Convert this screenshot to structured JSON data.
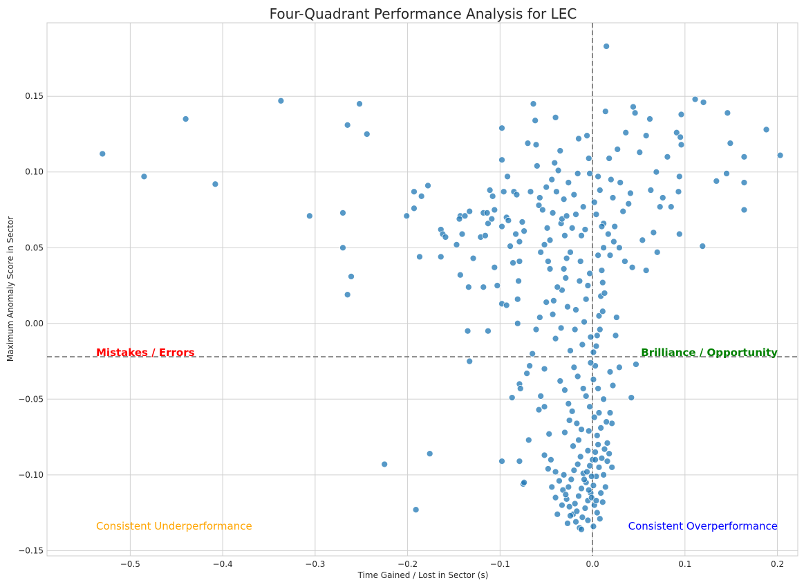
{
  "colors": {
    "point_fill": "#1f77b4",
    "point_stroke": "#ffffff",
    "grid": "#d0d0d0",
    "frame": "#cccccc",
    "threshold_line": "#808080",
    "mistakes": "#ff0000",
    "brilliance": "#008000",
    "underperformance": "#ffa500",
    "overperformance": "#0000ff"
  },
  "annotations": {
    "mistakes": "Mistakes / Errors",
    "brilliance": "Brilliance / Opportunity",
    "underperformance": "Consistent Underperformance",
    "overperformance": "Consistent Overperformance"
  },
  "chart_data": {
    "type": "scatter",
    "title": "Four-Quadrant Performance Analysis for LEC",
    "xlabel": "Time Gained / Lost in Sector (s)",
    "ylabel": "Maximum Anomaly Score in Sector",
    "xlim": [
      -0.59,
      0.222
    ],
    "ylim": [
      -0.1535,
      0.1985
    ],
    "xticks": [
      -0.5,
      -0.4,
      -0.3,
      -0.2,
      -0.1,
      0.0,
      0.1,
      0.2
    ],
    "yticks": [
      -0.15,
      -0.1,
      -0.05,
      0.0,
      0.05,
      0.1,
      0.15
    ],
    "xtick_labels": [
      "−0.5",
      "−0.4",
      "−0.3",
      "−0.2",
      "−0.1",
      "0.0",
      "0.1",
      "0.2"
    ],
    "ytick_labels": [
      "−0.15",
      "−0.10",
      "−0.05",
      "0.00",
      "0.05",
      "0.10",
      "0.15"
    ],
    "grid": true,
    "vertical_threshold_x": 0.0,
    "horizontal_threshold_y": -0.022,
    "points": [
      [
        -0.53,
        0.112
      ],
      [
        -0.485,
        0.097
      ],
      [
        -0.44,
        0.135
      ],
      [
        -0.408,
        0.092
      ],
      [
        -0.337,
        0.147
      ],
      [
        -0.306,
        0.071
      ],
      [
        -0.27,
        0.073
      ],
      [
        -0.265,
        0.131
      ],
      [
        -0.252,
        0.145
      ],
      [
        -0.244,
        0.125
      ],
      [
        -0.27,
        0.05
      ],
      [
        -0.261,
        0.031
      ],
      [
        -0.265,
        0.019
      ],
      [
        -0.201,
        0.071
      ],
      [
        -0.193,
        0.087
      ],
      [
        -0.178,
        0.091
      ],
      [
        -0.185,
        0.084
      ],
      [
        -0.193,
        0.076
      ],
      [
        -0.187,
        0.044
      ],
      [
        -0.164,
        0.062
      ],
      [
        -0.162,
        0.059
      ],
      [
        -0.159,
        0.057
      ],
      [
        -0.164,
        0.044
      ],
      [
        -0.147,
        0.052
      ],
      [
        -0.141,
        0.059
      ],
      [
        -0.143,
        0.071
      ],
      [
        -0.144,
        0.069
      ],
      [
        -0.138,
        0.071
      ],
      [
        -0.133,
        0.074
      ],
      [
        -0.143,
        0.032
      ],
      [
        -0.134,
        0.024
      ],
      [
        -0.118,
        0.024
      ],
      [
        -0.129,
        0.043
      ],
      [
        -0.121,
        0.057
      ],
      [
        -0.116,
        0.058
      ],
      [
        -0.118,
        0.073
      ],
      [
        -0.114,
        0.073
      ],
      [
        -0.113,
        0.066
      ],
      [
        -0.109,
        0.069
      ],
      [
        -0.106,
        0.075
      ],
      [
        -0.108,
        0.084
      ],
      [
        -0.111,
        0.088
      ],
      [
        -0.106,
        0.037
      ],
      [
        -0.103,
        0.025
      ],
      [
        -0.098,
        0.013
      ],
      [
        -0.093,
        0.012
      ],
      [
        -0.135,
        -0.005
      ],
      [
        -0.113,
        -0.005
      ],
      [
        -0.133,
        -0.025
      ],
      [
        -0.098,
        0.108
      ],
      [
        -0.098,
        0.129
      ],
      [
        -0.096,
        0.087
      ],
      [
        -0.092,
        0.097
      ],
      [
        -0.098,
        0.064
      ],
      [
        -0.093,
        0.07
      ],
      [
        -0.091,
        0.068
      ],
      [
        -0.089,
        0.051
      ],
      [
        -0.086,
        0.04
      ],
      [
        -0.085,
        0.087
      ],
      [
        -0.083,
        0.059
      ],
      [
        -0.08,
        0.028
      ],
      [
        -0.079,
        0.041
      ],
      [
        -0.081,
        0.016
      ],
      [
        -0.081,
        0.0
      ],
      [
        -0.082,
        0.085
      ],
      [
        -0.079,
        0.054
      ],
      [
        -0.076,
        0.067
      ],
      [
        -0.074,
        0.061
      ],
      [
        -0.07,
        0.119
      ],
      [
        -0.067,
        0.087
      ],
      [
        -0.064,
        0.145
      ],
      [
        -0.062,
        0.134
      ],
      [
        -0.061,
        0.118
      ],
      [
        -0.06,
        0.104
      ],
      [
        -0.058,
        0.078
      ],
      [
        -0.057,
        0.083
      ],
      [
        -0.056,
        0.047
      ],
      [
        -0.054,
        0.075
      ],
      [
        -0.052,
        0.052
      ],
      [
        -0.05,
        0.09
      ],
      [
        -0.049,
        0.063
      ],
      [
        -0.048,
        0.041
      ],
      [
        -0.046,
        0.055
      ],
      [
        -0.044,
        0.095
      ],
      [
        -0.043,
        0.073
      ],
      [
        -0.041,
        0.106
      ],
      [
        -0.039,
        0.087
      ],
      [
        -0.037,
        0.101
      ],
      [
        -0.035,
        0.114
      ],
      [
        -0.04,
        0.136
      ],
      [
        -0.034,
        0.066
      ],
      [
        -0.033,
        0.069
      ],
      [
        -0.031,
        0.082
      ],
      [
        -0.03,
        0.058
      ],
      [
        -0.028,
        0.071
      ],
      [
        -0.026,
        0.093
      ],
      [
        -0.024,
        0.047
      ],
      [
        -0.022,
        0.063
      ],
      [
        -0.02,
        0.085
      ],
      [
        -0.018,
        0.072
      ],
      [
        -0.016,
        0.099
      ],
      [
        -0.015,
        0.122
      ],
      [
        -0.012,
        0.058
      ],
      [
        -0.01,
        0.077
      ],
      [
        -0.008,
        0.062
      ],
      [
        -0.006,
        0.124
      ],
      [
        -0.004,
        0.109
      ],
      [
        -0.003,
        0.099
      ],
      [
        0.002,
        0.08
      ],
      [
        0.004,
        0.072
      ],
      [
        0.006,
        0.097
      ],
      [
        0.008,
        0.088
      ],
      [
        0.012,
        0.066
      ],
      [
        0.014,
        0.14
      ],
      [
        0.015,
        0.183
      ],
      [
        0.018,
        0.109
      ],
      [
        0.02,
        0.095
      ],
      [
        0.022,
        0.083
      ],
      [
        0.024,
        0.064
      ],
      [
        0.027,
        0.115
      ],
      [
        0.03,
        0.093
      ],
      [
        0.033,
        0.074
      ],
      [
        0.036,
        0.126
      ],
      [
        0.039,
        0.079
      ],
      [
        0.041,
        0.086
      ],
      [
        0.044,
        0.143
      ],
      [
        0.046,
        0.139
      ],
      [
        0.051,
        0.113
      ],
      [
        0.054,
        0.055
      ],
      [
        0.058,
        0.124
      ],
      [
        0.062,
        0.135
      ],
      [
        0.063,
        0.088
      ],
      [
        0.066,
        0.06
      ],
      [
        0.069,
        0.1
      ],
      [
        0.07,
        0.047
      ],
      [
        0.073,
        0.077
      ],
      [
        0.076,
        0.083
      ],
      [
        0.081,
        0.11
      ],
      [
        0.085,
        0.077
      ],
      [
        0.091,
        0.126
      ],
      [
        0.093,
        0.087
      ],
      [
        0.094,
        0.097
      ],
      [
        0.095,
        0.123
      ],
      [
        0.096,
        0.118
      ],
      [
        0.096,
        0.138
      ],
      [
        0.094,
        0.059
      ],
      [
        0.111,
        0.148
      ],
      [
        0.12,
        0.146
      ],
      [
        0.119,
        0.051
      ],
      [
        0.134,
        0.094
      ],
      [
        0.145,
        0.099
      ],
      [
        0.146,
        0.139
      ],
      [
        0.149,
        0.119
      ],
      [
        0.164,
        0.11
      ],
      [
        0.164,
        0.093
      ],
      [
        0.164,
        0.075
      ],
      [
        0.188,
        0.128
      ],
      [
        0.203,
        0.111
      ],
      [
        0.058,
        0.035
      ],
      [
        0.043,
        0.037
      ],
      [
        0.035,
        0.041
      ],
      [
        0.029,
        0.05
      ],
      [
        0.023,
        0.054
      ],
      [
        0.017,
        0.059
      ],
      [
        0.01,
        0.064
      ],
      [
        0.012,
        0.05
      ],
      [
        0.019,
        0.045
      ],
      [
        0.025,
        -0.008
      ],
      [
        0.047,
        -0.027
      ],
      [
        0.042,
        -0.049
      ],
      [
        0.021,
        -0.066
      ],
      [
        0.019,
        -0.032
      ],
      [
        0.022,
        -0.041
      ],
      [
        0.021,
        -0.095
      ],
      [
        0.016,
        -0.079
      ],
      [
        -0.065,
        -0.02
      ],
      [
        -0.068,
        -0.028
      ],
      [
        -0.071,
        -0.033
      ],
      [
        -0.079,
        -0.04
      ],
      [
        -0.078,
        -0.043
      ],
      [
        -0.087,
        -0.049
      ],
      [
        -0.079,
        -0.091
      ],
      [
        -0.098,
        -0.091
      ],
      [
        -0.075,
        -0.106
      ],
      [
        -0.074,
        -0.105
      ],
      [
        -0.069,
        -0.077
      ],
      [
        -0.056,
        -0.048
      ],
      [
        -0.052,
        -0.03
      ],
      [
        -0.047,
        -0.073
      ],
      [
        -0.052,
        -0.055
      ],
      [
        -0.058,
        -0.057
      ],
      [
        -0.061,
        -0.004
      ],
      [
        -0.057,
        0.004
      ],
      [
        -0.05,
        0.014
      ],
      [
        -0.042,
        0.015
      ],
      [
        -0.046,
        0.036
      ],
      [
        -0.04,
        -0.01
      ],
      [
        -0.034,
        -0.003
      ],
      [
        -0.033,
        0.022
      ],
      [
        -0.029,
        0.03
      ],
      [
        -0.027,
        0.011
      ],
      [
        -0.024,
        -0.018
      ],
      [
        -0.019,
        -0.004
      ],
      [
        -0.018,
        0.009
      ],
      [
        -0.014,
        0.028
      ],
      [
        -0.013,
        0.041
      ],
      [
        -0.011,
        -0.014
      ],
      [
        -0.009,
        0.001
      ],
      [
        -0.007,
        0.016
      ],
      [
        -0.005,
        0.025
      ],
      [
        -0.003,
        0.033
      ],
      [
        -0.002,
        -0.009
      ],
      [
        0.001,
        -0.019
      ],
      [
        0.003,
        -0.028
      ],
      [
        0.005,
        -0.008
      ],
      [
        0.007,
        0.005
      ],
      [
        0.009,
        0.018
      ],
      [
        0.011,
        0.027
      ],
      [
        -0.176,
        -0.086
      ],
      [
        -0.225,
        -0.093
      ],
      [
        -0.191,
        -0.123
      ],
      [
        -0.035,
        -0.038
      ],
      [
        -0.03,
        -0.044
      ],
      [
        -0.026,
        -0.053
      ],
      [
        -0.022,
        -0.058
      ],
      [
        -0.017,
        -0.066
      ],
      [
        -0.012,
        -0.07
      ],
      [
        -0.007,
        -0.048
      ],
      [
        -0.003,
        -0.055
      ],
      [
        0.002,
        -0.062
      ],
      [
        0.006,
        -0.043
      ],
      [
        0.009,
        -0.069
      ],
      [
        0.012,
        -0.05
      ],
      [
        -0.045,
        -0.09
      ],
      [
        -0.04,
        -0.098
      ],
      [
        -0.036,
        -0.104
      ],
      [
        -0.032,
        -0.11
      ],
      [
        -0.028,
        -0.116
      ],
      [
        -0.025,
        -0.121
      ],
      [
        -0.021,
        -0.126
      ],
      [
        -0.018,
        -0.131
      ],
      [
        -0.014,
        -0.135
      ],
      [
        -0.011,
        -0.128
      ],
      [
        -0.008,
        -0.122
      ],
      [
        -0.005,
        -0.117
      ],
      [
        -0.002,
        -0.112
      ],
      [
        0.001,
        -0.107
      ],
      [
        0.004,
        -0.101
      ],
      [
        0.007,
        -0.095
      ],
      [
        0.01,
        -0.089
      ],
      [
        0.013,
        -0.083
      ],
      [
        0.016,
        -0.091
      ],
      [
        0.018,
        -0.086
      ],
      [
        -0.038,
        -0.126
      ],
      [
        -0.033,
        -0.12
      ],
      [
        -0.029,
        -0.113
      ],
      [
        -0.026,
        -0.108
      ],
      [
        -0.023,
        -0.103
      ],
      [
        -0.02,
        -0.097
      ],
      [
        -0.016,
        -0.093
      ],
      [
        -0.013,
        -0.088
      ],
      [
        -0.01,
        -0.099
      ],
      [
        -0.007,
        -0.105
      ],
      [
        -0.004,
        -0.11
      ],
      [
        -0.001,
        -0.115
      ],
      [
        0.002,
        -0.12
      ],
      [
        0.005,
        -0.125
      ],
      [
        0.008,
        -0.129
      ],
      [
        0.011,
        -0.118
      ],
      [
        0.014,
        -0.108
      ],
      [
        -0.027,
        -0.132
      ],
      [
        -0.024,
        -0.127
      ],
      [
        -0.019,
        -0.119
      ],
      [
        -0.015,
        -0.114
      ],
      [
        -0.012,
        -0.109
      ],
      [
        -0.009,
        -0.103
      ],
      [
        -0.006,
        -0.098
      ],
      [
        -0.003,
        -0.094
      ],
      [
        0.0,
        -0.09
      ],
      [
        0.003,
        -0.085
      ],
      [
        0.006,
        -0.08
      ],
      [
        0.009,
        -0.112
      ],
      [
        0.012,
        -0.1
      ],
      [
        -0.031,
        -0.1
      ],
      [
        -0.017,
        -0.124
      ],
      [
        -0.012,
        -0.136
      ],
      [
        -0.005,
        -0.13
      ],
      [
        0.001,
        -0.134
      ],
      [
        -0.001,
        -0.101
      ],
      [
        0.004,
        -0.117
      ],
      [
        -0.03,
        -0.072
      ],
      [
        -0.025,
        -0.064
      ],
      [
        -0.015,
        -0.077
      ],
      [
        -0.005,
        -0.084
      ],
      [
        0.005,
        -0.074
      ],
      [
        -0.052,
        -0.087
      ],
      [
        -0.048,
        -0.096
      ],
      [
        -0.044,
        -0.108
      ],
      [
        -0.04,
        -0.115
      ],
      [
        -0.021,
        -0.081
      ],
      [
        0.015,
        -0.065
      ],
      [
        0.019,
        -0.059
      ],
      [
        0.001,
        -0.037
      ],
      [
        -0.002,
        -0.026
      ],
      [
        0.004,
        -0.015
      ],
      [
        0.008,
        -0.004
      ],
      [
        0.011,
        0.008
      ],
      [
        0.013,
        0.02
      ],
      [
        0.01,
        0.035
      ],
      [
        0.006,
        0.045
      ],
      [
        -0.043,
        0.006
      ],
      [
        -0.038,
        0.024
      ],
      [
        -0.031,
        0.036
      ],
      [
        -0.028,
        0.043
      ],
      [
        -0.02,
        -0.029
      ],
      [
        -0.016,
        -0.035
      ],
      [
        -0.01,
        -0.043
      ],
      [
        -0.004,
        -0.071
      ],
      [
        0.003,
        -0.09
      ],
      [
        0.007,
        -0.059
      ],
      [
        0.029,
        -0.029
      ],
      [
        0.026,
        0.004
      ]
    ]
  }
}
